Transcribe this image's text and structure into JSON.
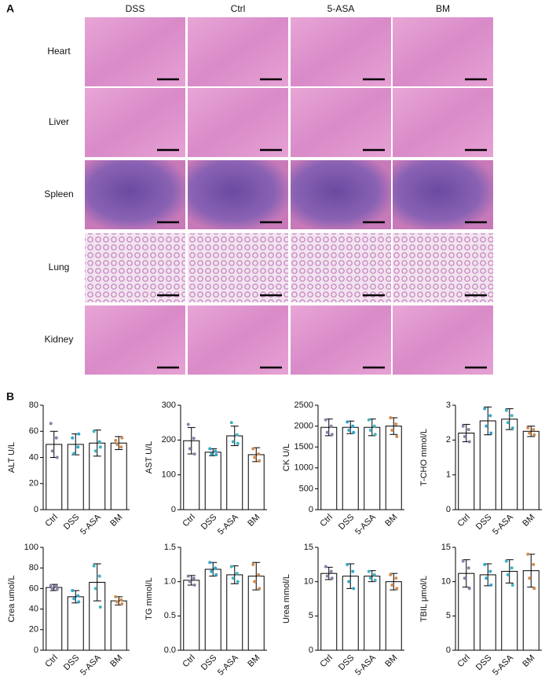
{
  "panel_labels": [
    "A",
    "B"
  ],
  "panel_a": {
    "columns": [
      "DSS",
      "Ctrl",
      "5-ASA",
      "BM"
    ],
    "rows": [
      "Heart",
      "Liver",
      "Spleen",
      "Lung",
      "Kidney"
    ]
  },
  "chart_data": [
    {
      "type": "bar",
      "ylabel": "ALT U/L",
      "categories": [
        "Ctrl",
        "DSS",
        "5-ASA",
        "BM"
      ],
      "values": [
        50,
        50,
        51,
        51
      ],
      "errors": [
        10,
        8,
        10,
        5
      ],
      "points": [
        [
          66,
          55,
          45,
          40
        ],
        [
          55,
          48,
          43,
          58
        ],
        [
          60,
          52,
          45,
          48
        ],
        [
          53,
          48,
          50,
          55
        ]
      ],
      "point_colors": [
        "#8c80aa",
        "#2ea6c9",
        "#3fb4c2",
        "#d38b4d"
      ],
      "ylim": [
        0,
        80
      ],
      "yticks": [
        0,
        20,
        40,
        60,
        80
      ]
    },
    {
      "type": "bar",
      "ylabel": "AST U/L",
      "categories": [
        "Ctrl",
        "DSS",
        "5-ASA",
        "BM"
      ],
      "values": [
        198,
        165,
        212,
        158
      ],
      "errors": [
        38,
        10,
        28,
        20
      ],
      "points": [
        [
          245,
          205,
          175,
          160
        ],
        [
          175,
          168,
          160,
          158
        ],
        [
          250,
          215,
          195,
          190
        ],
        [
          175,
          160,
          150,
          140
        ]
      ],
      "point_colors": [
        "#8c80aa",
        "#2ea6c9",
        "#3fb4c2",
        "#d38b4d"
      ],
      "ylim": [
        0,
        300
      ],
      "yticks": [
        0,
        100,
        200,
        300
      ]
    },
    {
      "type": "bar",
      "ylabel": "CK U/L",
      "categories": [
        "Ctrl",
        "DSS",
        "5-ASA",
        "BM"
      ],
      "values": [
        1970,
        1970,
        1970,
        2000
      ],
      "errors": [
        200,
        150,
        200,
        200
      ],
      "points": [
        [
          2150,
          2000,
          1850,
          1800
        ],
        [
          2100,
          2000,
          1900,
          1850
        ],
        [
          2150,
          2000,
          1900,
          1800
        ],
        [
          2200,
          2050,
          1900,
          1750
        ]
      ],
      "point_colors": [
        "#8c80aa",
        "#2ea6c9",
        "#3fb4c2",
        "#d38b4d"
      ],
      "ylim": [
        0,
        2500
      ],
      "yticks": [
        0,
        500,
        1000,
        1500,
        2000,
        2500
      ]
    },
    {
      "type": "bar",
      "ylabel": "T-CHO mmol/L",
      "categories": [
        "Ctrl",
        "DSS",
        "5-ASA",
        "BM"
      ],
      "values": [
        2.2,
        2.55,
        2.6,
        2.25
      ],
      "errors": [
        0.25,
        0.4,
        0.3,
        0.15
      ],
      "points": [
        [
          2.4,
          2.3,
          2.1,
          1.95
        ],
        [
          2.9,
          2.7,
          2.4,
          2.2
        ],
        [
          2.85,
          2.7,
          2.5,
          2.35
        ],
        [
          2.35,
          2.3,
          2.2,
          2.15
        ]
      ],
      "point_colors": [
        "#8c80aa",
        "#2ea6c9",
        "#3fb4c2",
        "#d38b4d"
      ],
      "ylim": [
        0,
        3
      ],
      "yticks": [
        0,
        1,
        2,
        3
      ]
    },
    {
      "type": "bar",
      "ylabel": "Crea umol/L",
      "categories": [
        "Ctrl",
        "DSS",
        "5-ASA",
        "BM"
      ],
      "values": [
        61,
        52,
        66,
        48
      ],
      "errors": [
        3,
        6,
        18,
        4
      ],
      "points": [
        [
          63,
          62,
          60,
          59
        ],
        [
          58,
          53,
          50,
          47
        ],
        [
          82,
          72,
          60,
          42
        ],
        [
          52,
          49,
          47,
          45
        ]
      ],
      "point_colors": [
        "#8c80aa",
        "#2ea6c9",
        "#3fb4c2",
        "#d38b4d"
      ],
      "ylim": [
        0,
        100
      ],
      "yticks": [
        0,
        20,
        40,
        60,
        80,
        100
      ]
    },
    {
      "type": "bar",
      "ylabel": "TG mmol/L",
      "categories": [
        "Ctrl",
        "DSS",
        "5-ASA",
        "BM"
      ],
      "values": [
        1.02,
        1.18,
        1.1,
        1.08
      ],
      "errors": [
        0.07,
        0.1,
        0.13,
        0.2
      ],
      "points": [
        [
          1.08,
          1.05,
          1.0,
          0.95
        ],
        [
          1.28,
          1.2,
          1.15,
          1.1
        ],
        [
          1.22,
          1.12,
          1.05,
          1.0
        ],
        [
          1.25,
          1.1,
          1.0,
          0.9
        ]
      ],
      "point_colors": [
        "#8c80aa",
        "#2ea6c9",
        "#3fb4c2",
        "#d38b4d"
      ],
      "ylim": [
        0,
        1.5
      ],
      "yticks": [
        {
          "value": 0,
          "label": "0.0"
        },
        0.5,
        {
          "value": 1,
          "label": "1.0"
        },
        1.5
      ]
    },
    {
      "type": "bar",
      "ylabel": "Urea mmol/L",
      "categories": [
        "Ctrl",
        "DSS",
        "5-ASA",
        "BM"
      ],
      "values": [
        11.2,
        10.8,
        10.8,
        10.0
      ],
      "errors": [
        0.9,
        1.8,
        0.8,
        1.2
      ],
      "points": [
        [
          12.2,
          11.5,
          10.8,
          10.5
        ],
        [
          12.5,
          11.5,
          10.0,
          9.0
        ],
        [
          11.5,
          11.0,
          10.5,
          10.2
        ],
        [
          11.0,
          10.5,
          9.5,
          9.0
        ]
      ],
      "point_colors": [
        "#8c80aa",
        "#2ea6c9",
        "#3fb4c2",
        "#d38b4d"
      ],
      "ylim": [
        0,
        15
      ],
      "yticks": [
        0,
        5,
        10,
        15
      ]
    },
    {
      "type": "bar",
      "ylabel": "TBIL μmol/L",
      "categories": [
        "Ctrl",
        "DSS",
        "5-ASA",
        "BM"
      ],
      "values": [
        11.2,
        11,
        11.5,
        11.6
      ],
      "errors": [
        2,
        1.6,
        1.7,
        2.4
      ],
      "points": [
        [
          13,
          12,
          10.5,
          9
        ],
        [
          12.5,
          11.5,
          10.5,
          9.5
        ],
        [
          13,
          12,
          11,
          9.5
        ],
        [
          14,
          12.5,
          10.5,
          9
        ]
      ],
      "point_colors": [
        "#8c80aa",
        "#2ea6c9",
        "#3fb4c2",
        "#d38b4d"
      ],
      "ylim": [
        0,
        15
      ],
      "yticks": [
        0,
        5,
        10,
        15
      ]
    }
  ]
}
